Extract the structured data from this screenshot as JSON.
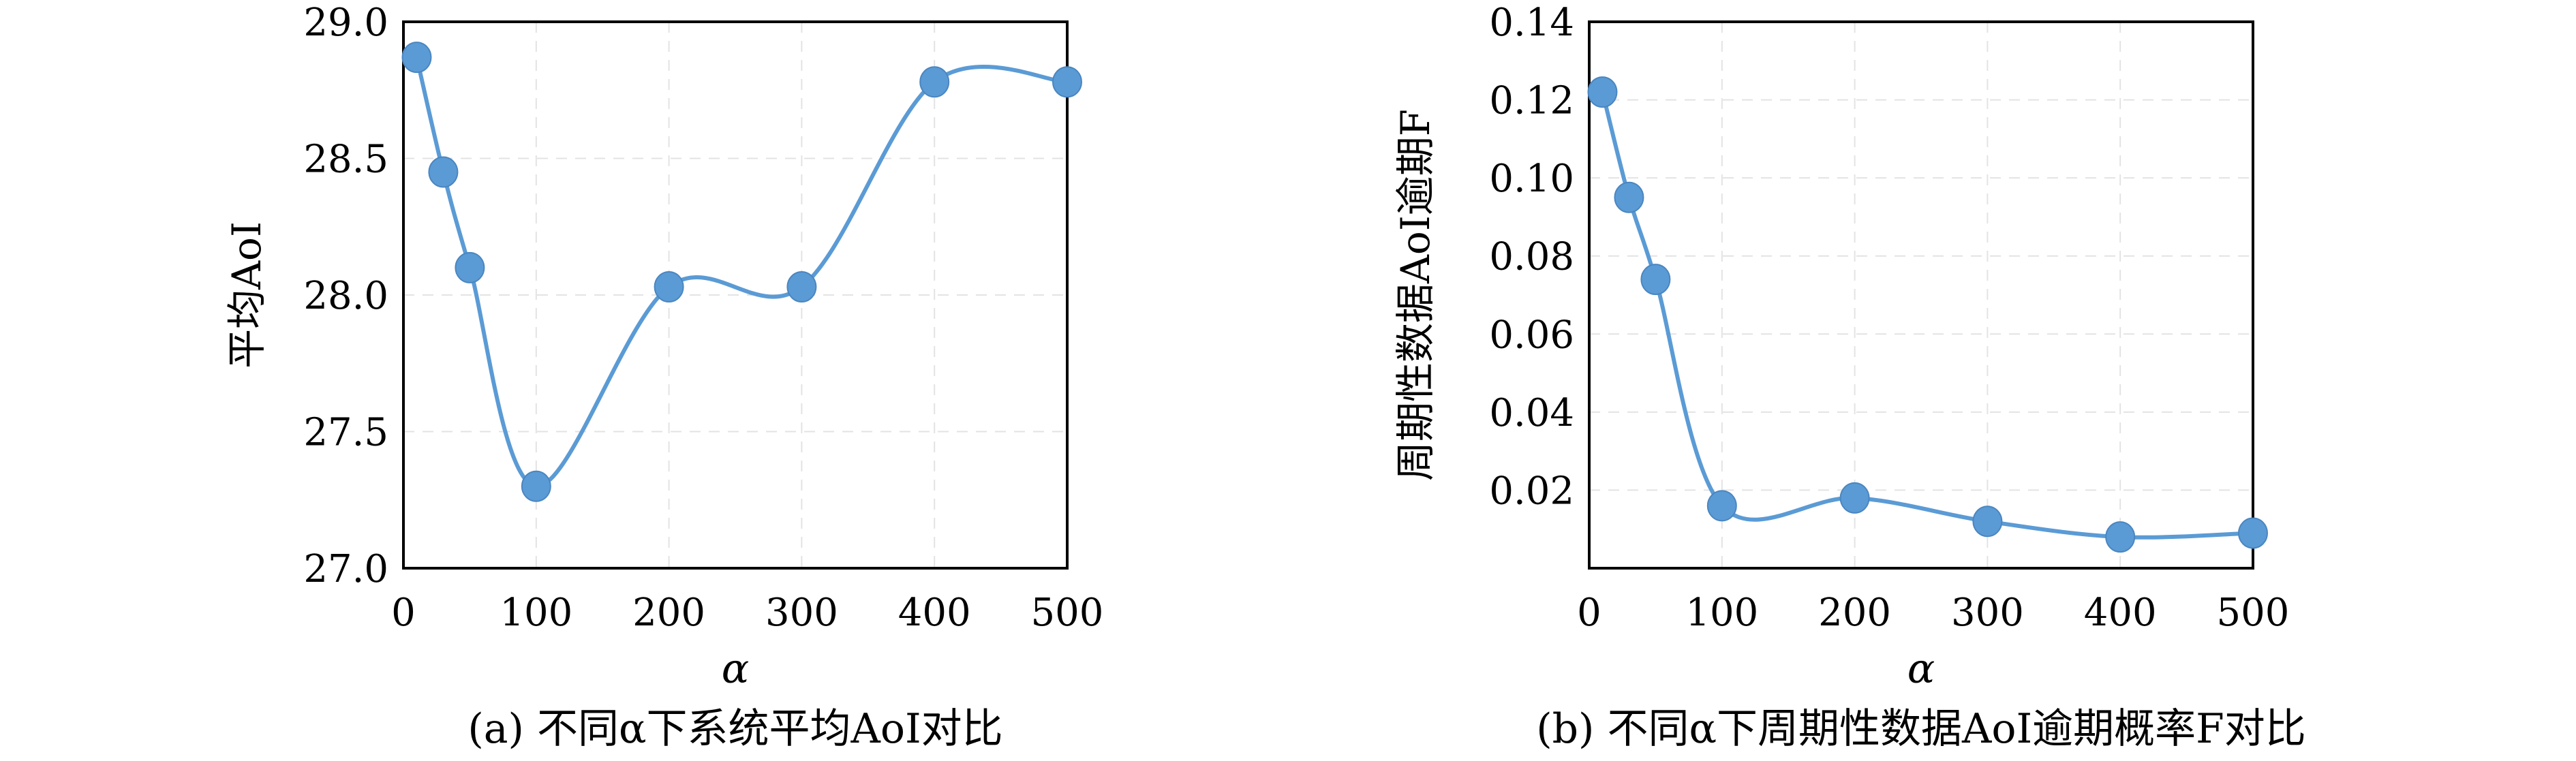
{
  "chart_data": [
    {
      "type": "line",
      "panel": "(a)",
      "caption": "(a) 不同α下系统平均AoI对比",
      "xlabel": "α",
      "ylabel": "平均AoI",
      "x": [
        10,
        30,
        50,
        100,
        200,
        300,
        400,
        500
      ],
      "y": [
        28.87,
        28.45,
        28.1,
        27.3,
        28.03,
        28.03,
        28.78,
        28.78
      ],
      "xlim": [
        0,
        500
      ],
      "ylim": [
        27.0,
        29.0
      ],
      "xticks": [
        "0",
        "100",
        "200",
        "300",
        "400",
        "500"
      ],
      "yticks": [
        "27.0",
        "27.5",
        "28.0",
        "28.5",
        "29.0"
      ],
      "grid": true,
      "color": "#5B9BD5"
    },
    {
      "type": "line",
      "panel": "(b)",
      "caption": "(b) 不同α下周期性数据AoI逾期概率F对比",
      "xlabel": "α",
      "ylabel": "周期性数据AoI逾期F",
      "x": [
        10,
        30,
        50,
        100,
        200,
        300,
        400,
        500
      ],
      "y": [
        0.122,
        0.095,
        0.074,
        0.016,
        0.018,
        0.012,
        0.008,
        0.009
      ],
      "xlim": [
        0,
        500
      ],
      "ylim": [
        0,
        0.14
      ],
      "xticks": [
        "0",
        "100",
        "200",
        "300",
        "400",
        "500"
      ],
      "yticks": [
        "0.02",
        "0.04",
        "0.06",
        "0.08",
        "0.10",
        "0.12",
        "0.14"
      ],
      "grid": true,
      "color": "#5B9BD5"
    }
  ]
}
